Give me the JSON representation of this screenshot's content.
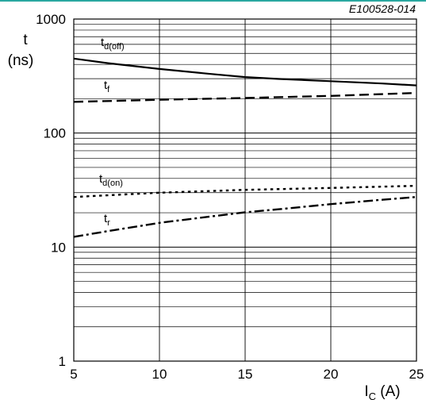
{
  "figure_code": "E100528-014",
  "chart_data": {
    "type": "line",
    "y_scale": "log",
    "xlim": [
      5,
      25
    ],
    "ylim": [
      1,
      1000
    ],
    "x_ticks": [
      "5",
      "10",
      "15",
      "20",
      "25"
    ],
    "y_ticks": [
      "1",
      "10",
      "100",
      "1000"
    ],
    "xlabel": {
      "main": "I",
      "sub": "C",
      "unit": " (A)"
    },
    "ylabel": {
      "line1": "t",
      "line2": "(ns)"
    },
    "grid": true,
    "series": [
      {
        "name": {
          "main": "t",
          "sub": "d(off)"
        },
        "style": "solid",
        "x": [
          5,
          7,
          10,
          13,
          15,
          17,
          20,
          23,
          25
        ],
        "y": [
          450,
          410,
          365,
          330,
          310,
          298,
          285,
          272,
          262
        ]
      },
      {
        "name": {
          "main": "t",
          "sub": "f"
        },
        "style": "dashed",
        "x": [
          5,
          10,
          15,
          20,
          25
        ],
        "y": [
          188,
          196,
          203,
          212,
          225
        ]
      },
      {
        "name": {
          "main": "t",
          "sub": "d(on)"
        },
        "style": "dotted",
        "x": [
          5,
          10,
          15,
          20,
          25
        ],
        "y": [
          27.5,
          30,
          31.8,
          33,
          34.5
        ]
      },
      {
        "name": {
          "main": "t",
          "sub": "r"
        },
        "style": "dashdot",
        "x": [
          5,
          7,
          10,
          12,
          15,
          17,
          20,
          23,
          25
        ],
        "y": [
          12.3,
          13.8,
          16.3,
          17.8,
          20.2,
          21.5,
          23.8,
          26,
          27.5
        ]
      }
    ]
  }
}
